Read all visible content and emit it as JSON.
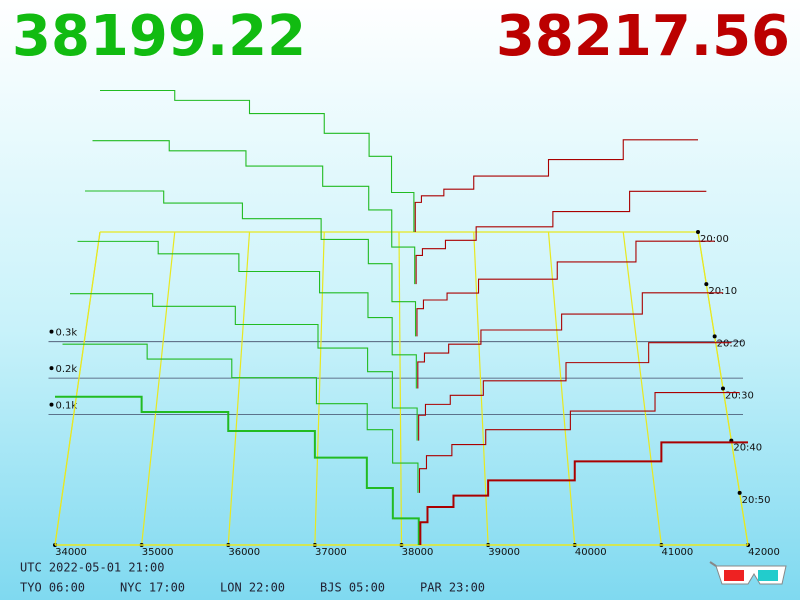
{
  "chart_data": {
    "type": "depth3d",
    "bid_price": 38199.22,
    "ask_price": 38217.56,
    "bid_color": "#22bb22",
    "ask_color": "#aa0000",
    "xlim": [
      34000,
      42000
    ],
    "xticks": [
      34000,
      35000,
      36000,
      37000,
      38000,
      39000,
      40000,
      41000,
      42000
    ],
    "ylim": [
      0,
      400
    ],
    "yticks": [
      {
        "value": 100,
        "label": "0.1k"
      },
      {
        "value": 200,
        "label": "0.2k"
      },
      {
        "value": 300,
        "label": "0.3k"
      }
    ],
    "time_labels": [
      "20:00",
      "20:10",
      "20:20",
      "20:30",
      "20:40",
      "20:50"
    ],
    "bid_prices": [
      34000,
      35000,
      36000,
      37000,
      37600,
      37900
    ],
    "ask_prices": [
      38300,
      38600,
      39000,
      40000,
      41000,
      42000
    ],
    "snapshots": [
      {
        "bids": [
          430,
          400,
          360,
          300,
          230,
          120
        ],
        "asks": [
          90,
          110,
          130,
          170,
          220,
          280
        ]
      },
      {
        "bids": [
          425,
          395,
          350,
          290,
          220,
          110
        ],
        "asks": [
          85,
          105,
          130,
          170,
          215,
          275
        ]
      },
      {
        "bids": [
          420,
          385,
          340,
          280,
          210,
          100
        ],
        "asks": [
          80,
          105,
          125,
          165,
          215,
          275
        ]
      },
      {
        "bids": [
          415,
          380,
          330,
          270,
          200,
          95
        ],
        "asks": [
          75,
          100,
          125,
          165,
          210,
          270
        ]
      },
      {
        "bids": [
          405,
          370,
          320,
          255,
          190,
          90
        ],
        "asks": [
          70,
          100,
          125,
          165,
          215,
          270
        ]
      },
      {
        "bids": [
          400,
          360,
          310,
          240,
          170,
          80
        ],
        "asks": [
          65,
          100,
          130,
          170,
          220,
          270
        ]
      },
      {
        "bids": [
          390,
          350,
          300,
          230,
          150,
          70
        ],
        "asks": [
          60,
          100,
          130,
          170,
          220,
          270
        ]
      }
    ]
  },
  "footer": {
    "utc": "UTC 2022-05-01 21:00",
    "clocks": [
      "TYO 06:00",
      "NYC 17:00",
      "LON 22:00",
      "BJS 05:00",
      "PAR 23:00"
    ]
  }
}
